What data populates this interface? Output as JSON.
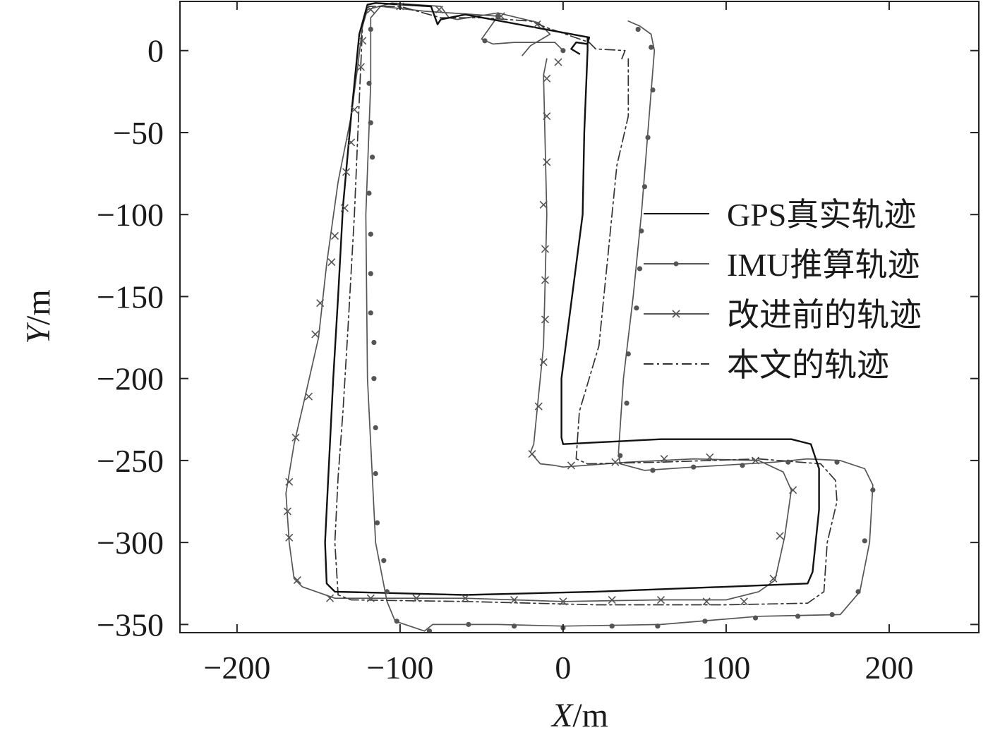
{
  "chart_data": {
    "type": "line",
    "title": "",
    "xlabel": {
      "italic": "X",
      "unit": "/m"
    },
    "ylabel": {
      "italic": "Y",
      "unit": "/m"
    },
    "xlim": [
      -235,
      255
    ],
    "ylim": [
      -355,
      30
    ],
    "xticks": [
      -200,
      -100,
      0,
      100,
      200
    ],
    "yticks": [
      0,
      -50,
      -100,
      -150,
      -200,
      -250,
      -300,
      -350
    ],
    "xtick_labels": [
      "−200",
      "−100",
      "0",
      "100",
      "200"
    ],
    "ytick_labels": [
      "0",
      "−50",
      "−100",
      "−150",
      "−200",
      "−250",
      "−300",
      "−350"
    ],
    "grid": false,
    "legend_position": "right-middle",
    "series": [
      {
        "name": "GPS真实轨迹",
        "color": "#111111",
        "dash": "solid",
        "marker": "none",
        "points": [
          [
            10,
            -2
          ],
          [
            5,
            1
          ],
          [
            8,
            5
          ],
          [
            15,
            4
          ],
          [
            16,
            8
          ],
          [
            -60,
            22
          ],
          [
            -75,
            19
          ],
          [
            -77,
            16
          ],
          [
            -81,
            27
          ],
          [
            -115,
            29
          ],
          [
            -120,
            28
          ],
          [
            -125,
            10
          ],
          [
            -130,
            -40
          ],
          [
            -135,
            -95
          ],
          [
            -138,
            -150
          ],
          [
            -141,
            -200
          ],
          [
            -144,
            -260
          ],
          [
            -146,
            -300
          ],
          [
            -145,
            -325
          ],
          [
            -140,
            -330
          ],
          [
            -60,
            -332
          ],
          [
            20,
            -330
          ],
          [
            100,
            -327
          ],
          [
            150,
            -325
          ],
          [
            153,
            -318
          ],
          [
            157,
            -280
          ],
          [
            157,
            -255
          ],
          [
            152,
            -240
          ],
          [
            140,
            -237
          ],
          [
            60,
            -237
          ],
          [
            20,
            -239
          ],
          [
            0,
            -240
          ],
          [
            -1,
            -236
          ],
          [
            -1,
            -200
          ],
          [
            12,
            -100
          ],
          [
            13,
            -50
          ],
          [
            15,
            0
          ],
          [
            15,
            8
          ]
        ]
      },
      {
        "name": "IMU推算轨迹",
        "color": "#555555",
        "dash": "solid",
        "marker": "dot",
        "points": [
          [
            0,
            0
          ],
          [
            -5,
            5
          ],
          [
            -30,
            5
          ],
          [
            -43,
            4
          ],
          [
            -50,
            7
          ],
          [
            -40,
            21
          ],
          [
            -85,
            24
          ],
          [
            -112,
            27
          ],
          [
            -118,
            20
          ],
          [
            -118,
            -20
          ],
          [
            -121,
            -100
          ],
          [
            -120,
            -200
          ],
          [
            -117,
            -260
          ],
          [
            -115,
            -300
          ],
          [
            -108,
            -336
          ],
          [
            -103,
            -348
          ],
          [
            -85,
            -354
          ],
          [
            -80,
            -350
          ],
          [
            -40,
            -350
          ],
          [
            0,
            -351
          ],
          [
            60,
            -350
          ],
          [
            120,
            -345
          ],
          [
            170,
            -344
          ],
          [
            182,
            -330
          ],
          [
            188,
            -300
          ],
          [
            190,
            -265
          ],
          [
            185,
            -255
          ],
          [
            170,
            -250
          ],
          [
            150,
            -249
          ],
          [
            130,
            -251
          ],
          [
            80,
            -254
          ],
          [
            50,
            -256
          ],
          [
            35,
            -252
          ],
          [
            34,
            -245
          ],
          [
            37,
            -200
          ],
          [
            43,
            -150
          ],
          [
            48,
            -100
          ],
          [
            52,
            -50
          ],
          [
            56,
            0
          ],
          [
            54,
            10
          ],
          [
            47,
            15
          ],
          [
            40,
            18
          ]
        ]
      },
      {
        "name": "改进前的轨迹",
        "color": "#555555",
        "dash": "solid",
        "marker": "x",
        "points": [
          [
            -10,
            -5
          ],
          [
            -12,
            -15
          ],
          [
            -10,
            -100
          ],
          [
            -12,
            -180
          ],
          [
            -16,
            -220
          ],
          [
            -18,
            -240
          ],
          [
            -20,
            -245
          ],
          [
            -14,
            -252
          ],
          [
            -5,
            -253
          ],
          [
            0,
            -254
          ],
          [
            40,
            -251
          ],
          [
            80,
            -249
          ],
          [
            120,
            -250
          ],
          [
            135,
            -257
          ],
          [
            140,
            -268
          ],
          [
            136,
            -296
          ],
          [
            130,
            -323
          ],
          [
            120,
            -330
          ],
          [
            100,
            -335
          ],
          [
            60,
            -335
          ],
          [
            0,
            -336
          ],
          [
            -60,
            -334
          ],
          [
            -90,
            -334
          ],
          [
            -110,
            -334
          ],
          [
            -140,
            -334
          ],
          [
            -160,
            -327
          ],
          [
            -165,
            -322
          ],
          [
            -168,
            -300
          ],
          [
            -170,
            -270
          ],
          [
            -165,
            -240
          ],
          [
            -158,
            -210
          ],
          [
            -150,
            -175
          ],
          [
            -145,
            -130
          ],
          [
            -138,
            -80
          ],
          [
            -130,
            -40
          ],
          [
            -126,
            -10
          ],
          [
            -123,
            15
          ],
          [
            -120,
            25
          ],
          [
            -105,
            29
          ],
          [
            -90,
            28
          ],
          [
            -75,
            27
          ],
          [
            -70,
            20
          ],
          [
            -65,
            19
          ],
          [
            -40,
            23
          ],
          [
            -15,
            17
          ],
          [
            -8,
            10
          ],
          [
            -20,
            3
          ],
          [
            -25,
            -3
          ]
        ]
      },
      {
        "name": "本文的轨迹",
        "color": "#333333",
        "dash": "dashdot",
        "marker": "none",
        "points": [
          [
            36,
            -5
          ],
          [
            38,
            0
          ],
          [
            20,
            1
          ],
          [
            16,
            5
          ],
          [
            -10,
            14
          ],
          [
            -20,
            18
          ],
          [
            -50,
            20
          ],
          [
            -75,
            20
          ],
          [
            -100,
            27
          ],
          [
            -120,
            27
          ],
          [
            -123,
            15
          ],
          [
            -125,
            -30
          ],
          [
            -128,
            -100
          ],
          [
            -132,
            -170
          ],
          [
            -135,
            -220
          ],
          [
            -138,
            -260
          ],
          [
            -140,
            -300
          ],
          [
            -138,
            -332
          ],
          [
            -130,
            -335
          ],
          [
            -60,
            -336
          ],
          [
            20,
            -338
          ],
          [
            100,
            -338
          ],
          [
            150,
            -337
          ],
          [
            160,
            -330
          ],
          [
            162,
            -300
          ],
          [
            168,
            -275
          ],
          [
            167,
            -262
          ],
          [
            158,
            -252
          ],
          [
            120,
            -249
          ],
          [
            60,
            -251
          ],
          [
            15,
            -252
          ],
          [
            8,
            -249
          ],
          [
            10,
            -220
          ],
          [
            22,
            -180
          ],
          [
            28,
            -120
          ],
          [
            33,
            -70
          ],
          [
            40,
            -40
          ],
          [
            40,
            -5
          ]
        ]
      }
    ],
    "x_marker_points": [
      [
        -3,
        -7
      ],
      [
        -10,
        -17
      ],
      [
        -10,
        -40
      ],
      [
        -10,
        -68
      ],
      [
        -12,
        -94
      ],
      [
        -11,
        -121
      ],
      [
        -11,
        -140
      ],
      [
        -11,
        -164
      ],
      [
        -12,
        -190
      ],
      [
        -15,
        -217
      ],
      [
        -19,
        -246
      ],
      [
        5,
        -253
      ],
      [
        32,
        -251
      ],
      [
        62,
        -249
      ],
      [
        90,
        -248
      ],
      [
        118,
        -250
      ],
      [
        141,
        -268
      ],
      [
        133,
        -296
      ],
      [
        129,
        -322
      ],
      [
        111,
        -336
      ],
      [
        88,
        -336
      ],
      [
        60,
        -335
      ],
      [
        30,
        -335
      ],
      [
        0,
        -336
      ],
      [
        -30,
        -335
      ],
      [
        -60,
        -334
      ],
      [
        -90,
        -334
      ],
      [
        -118,
        -334
      ],
      [
        -143,
        -334
      ],
      [
        -163,
        -323
      ],
      [
        -168,
        -297
      ],
      [
        -169,
        -281
      ],
      [
        -168,
        -263
      ],
      [
        -164,
        -236
      ],
      [
        -156,
        -211
      ],
      [
        -152,
        -173
      ],
      [
        -149,
        -154
      ],
      [
        -142,
        -129
      ],
      [
        -140,
        -113
      ],
      [
        -134,
        -96
      ],
      [
        -133,
        -74
      ],
      [
        -130,
        -56
      ],
      [
        -128,
        -36
      ],
      [
        -124,
        -10
      ],
      [
        -123,
        6
      ],
      [
        -118,
        25
      ],
      [
        -100,
        27
      ],
      [
        -76,
        25
      ],
      [
        -38,
        21
      ],
      [
        -16,
        16
      ]
    ],
    "dot_marker_points": [
      [
        0,
        0
      ],
      [
        -48,
        6
      ],
      [
        -40,
        21
      ],
      [
        -118,
        13
      ],
      [
        -119,
        -20
      ],
      [
        -118,
        -44
      ],
      [
        -117,
        -65
      ],
      [
        -119,
        -87
      ],
      [
        -118,
        -112
      ],
      [
        -118,
        -136
      ],
      [
        -118,
        -160
      ],
      [
        -116,
        -178
      ],
      [
        -116,
        -200
      ],
      [
        -115,
        -230
      ],
      [
        -115,
        -258
      ],
      [
        -114,
        -288
      ],
      [
        -110,
        -311
      ],
      [
        -108,
        -330
      ],
      [
        -102,
        -348
      ],
      [
        -82,
        -354
      ],
      [
        -58,
        -350
      ],
      [
        -30,
        -351
      ],
      [
        0,
        -352
      ],
      [
        30,
        -351
      ],
      [
        58,
        -351
      ],
      [
        87,
        -348
      ],
      [
        118,
        -346
      ],
      [
        144,
        -345
      ],
      [
        165,
        -344
      ],
      [
        181,
        -330
      ],
      [
        185,
        -299
      ],
      [
        190,
        -268
      ],
      [
        168,
        -251
      ],
      [
        138,
        -251
      ],
      [
        110,
        -253
      ],
      [
        80,
        -254
      ],
      [
        55,
        -256
      ],
      [
        35,
        -247
      ],
      [
        39,
        -215
      ],
      [
        40,
        -185
      ],
      [
        45,
        -157
      ],
      [
        47,
        -133
      ],
      [
        48,
        -110
      ],
      [
        50,
        -83
      ],
      [
        52,
        -53
      ],
      [
        55,
        -24
      ],
      [
        54,
        2
      ],
      [
        46,
        13
      ]
    ]
  }
}
